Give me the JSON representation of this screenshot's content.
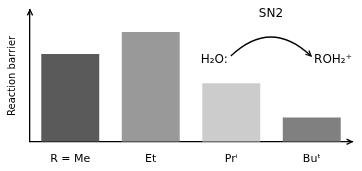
{
  "chart_data": {
    "type": "bar",
    "categories": [
      "R = Me",
      "Et",
      "Prⁱ",
      "Buᵗ"
    ],
    "values": [
      0.72,
      0.9,
      0.48,
      0.2
    ],
    "colors": [
      "#5a5a5a",
      "#999999",
      "#cccccc",
      "#808080"
    ],
    "ylabel": "Reaction barrier",
    "ylim": [
      0,
      1.08
    ],
    "grid": false,
    "tick_labels": "x",
    "annotations": [
      "SN2",
      "H₂O:",
      "ROH₂⁺"
    ]
  }
}
